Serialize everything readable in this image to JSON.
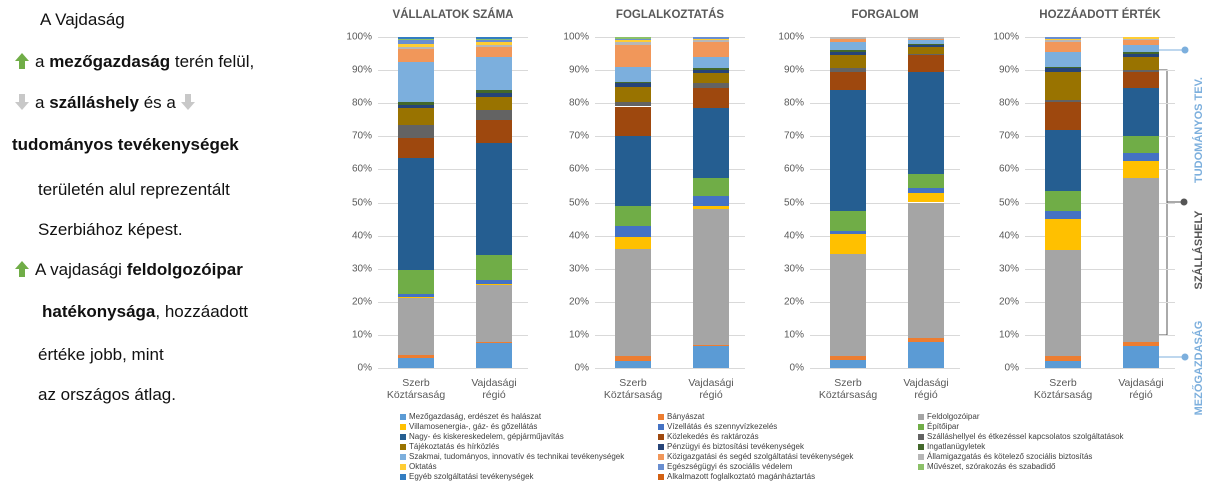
{
  "text_panel": {
    "lines": [
      [
        "A Vajdaság"
      ],
      [
        "a ",
        "mezőgazdaság",
        " terén felül,"
      ],
      [
        "a ",
        "szálláshely",
        " és a "
      ],
      [
        "tudományos tevékenységek"
      ],
      [
        "területén alul reprezentált"
      ],
      [
        "Szerbiához képest."
      ],
      [
        "A vajdasági ",
        "feldolgozóipar"
      ],
      [
        "hatékonysága",
        ", hozzáadott"
      ],
      [
        "értéke jobb, mint"
      ],
      [
        "az országos átlag."
      ]
    ]
  },
  "chart_data": [
    {
      "type": "bar",
      "stacked": true,
      "title": "VÁLLALATOK SZÁMA",
      "categories": [
        "Szerb Köztársaság",
        "Vajdasági régió"
      ],
      "ylim": [
        0,
        100
      ],
      "yticks": [
        {
          "value": 0,
          "label": "0%"
        },
        {
          "value": 10,
          "label": "10%"
        },
        {
          "value": 20,
          "label": "20%"
        },
        {
          "value": 30,
          "label": "30%"
        },
        {
          "value": 40,
          "label": "40%"
        },
        {
          "value": 50,
          "label": "50%"
        },
        {
          "value": 60,
          "label": "60%"
        },
        {
          "value": 70,
          "label": "70%"
        },
        {
          "value": 80,
          "label": "80%"
        },
        {
          "value": 90,
          "label": "90%"
        },
        {
          "value": 100,
          "label": "100%"
        }
      ],
      "grid": true,
      "series": [
        {
          "values": [
            3,
            7.5
          ]
        },
        {
          "values": [
            1,
            0.5
          ]
        },
        {
          "values": [
            17,
            17
          ]
        },
        {
          "values": [
            0.5,
            0.5
          ]
        },
        {
          "values": [
            1,
            1
          ]
        },
        {
          "values": [
            7,
            7.5
          ]
        },
        {
          "values": [
            34,
            34
          ]
        },
        {
          "values": [
            6,
            7
          ]
        },
        {
          "values": [
            4,
            3
          ]
        },
        {
          "values": [
            5,
            4
          ]
        },
        {
          "values": [
            1,
            1
          ]
        },
        {
          "values": [
            1,
            1
          ]
        },
        {
          "values": [
            12,
            10
          ]
        },
        {
          "values": [
            4,
            3
          ]
        },
        {
          "values": [
            0.5,
            0.5
          ]
        },
        {
          "values": [
            1,
            1
          ]
        },
        {
          "values": [
            1,
            0.5
          ]
        },
        {
          "values": [
            0.5,
            0.5
          ]
        },
        {
          "values": [
            0.5,
            0.5
          ]
        },
        {
          "values": [
            0,
            0
          ]
        }
      ]
    },
    {
      "type": "bar",
      "stacked": true,
      "title": "FOGLALKOZTATÁS",
      "categories": [
        "Szerb Köztársaság",
        "Vajdasági régió"
      ],
      "ylim": [
        0,
        100
      ],
      "yticks": [
        {
          "value": 0,
          "label": "0%"
        },
        {
          "value": 10,
          "label": "10%"
        },
        {
          "value": 20,
          "label": "20%"
        },
        {
          "value": 30,
          "label": "30%"
        },
        {
          "value": 40,
          "label": "40%"
        },
        {
          "value": 50,
          "label": "50%"
        },
        {
          "value": 60,
          "label": "60%"
        },
        {
          "value": 70,
          "label": "70%"
        },
        {
          "value": 80,
          "label": "80%"
        },
        {
          "value": 90,
          "label": "90%"
        },
        {
          "value": 100,
          "label": "100%"
        }
      ],
      "grid": true,
      "series": [
        {
          "values": [
            2,
            6.5
          ]
        },
        {
          "values": [
            1.5,
            0.5
          ]
        },
        {
          "values": [
            32.5,
            41
          ]
        },
        {
          "values": [
            3.5,
            1
          ]
        },
        {
          "values": [
            3.5,
            3
          ]
        },
        {
          "values": [
            6,
            5.5
          ]
        },
        {
          "values": [
            21,
            21
          ]
        },
        {
          "values": [
            9,
            6
          ]
        },
        {
          "values": [
            1.5,
            1.5
          ]
        },
        {
          "values": [
            4.5,
            3
          ]
        },
        {
          "values": [
            1,
            1
          ]
        },
        {
          "values": [
            0.5,
            0.5
          ]
        },
        {
          "values": [
            4.5,
            3.5
          ]
        },
        {
          "values": [
            6.5,
            4.5
          ]
        },
        {
          "values": [
            1,
            0.5
          ]
        },
        {
          "values": [
            0.5,
            0.5
          ]
        },
        {
          "values": [
            0.5,
            0.5
          ]
        },
        {
          "values": [
            0.5,
            0
          ]
        },
        {
          "values": [
            0,
            0
          ]
        },
        {
          "values": [
            0,
            0
          ]
        }
      ]
    },
    {
      "type": "bar",
      "stacked": true,
      "title": "FORGALOM",
      "categories": [
        "Szerb Köztársaság",
        "Vajdasági régió"
      ],
      "ylim": [
        0,
        100
      ],
      "yticks": [
        {
          "value": 0,
          "label": "0%"
        },
        {
          "value": 10,
          "label": "10%"
        },
        {
          "value": 20,
          "label": "20%"
        },
        {
          "value": 30,
          "label": "30%"
        },
        {
          "value": 40,
          "label": "40%"
        },
        {
          "value": 50,
          "label": "50%"
        },
        {
          "value": 60,
          "label": "60%"
        },
        {
          "value": 70,
          "label": "70%"
        },
        {
          "value": 80,
          "label": "80%"
        },
        {
          "value": 90,
          "label": "90%"
        },
        {
          "value": 100,
          "label": "100%"
        }
      ],
      "grid": true,
      "series": [
        {
          "values": [
            2.5,
            8
          ]
        },
        {
          "values": [
            1,
            1
          ]
        },
        {
          "values": [
            31,
            41
          ]
        },
        {
          "values": [
            6,
            3
          ]
        },
        {
          "values": [
            1,
            1.5
          ]
        },
        {
          "values": [
            6,
            4
          ]
        },
        {
          "values": [
            36.5,
            31
          ]
        },
        {
          "values": [
            5.5,
            5
          ]
        },
        {
          "values": [
            1,
            0.5
          ]
        },
        {
          "values": [
            4,
            2
          ]
        },
        {
          "values": [
            1,
            0.5
          ]
        },
        {
          "values": [
            0.5,
            0.5
          ]
        },
        {
          "values": [
            2.5,
            1
          ]
        },
        {
          "values": [
            1,
            0.5
          ]
        },
        {
          "values": [
            0.5,
            0.5
          ]
        },
        {
          "values": [
            0,
            0
          ]
        },
        {
          "values": [
            0,
            0
          ]
        },
        {
          "values": [
            0,
            0
          ]
        },
        {
          "values": [
            0,
            0
          ]
        },
        {
          "values": [
            0,
            0
          ]
        }
      ]
    },
    {
      "type": "bar",
      "stacked": true,
      "title": "HOZZÁADOTT ÉRTÉK",
      "categories": [
        "Szerb Köztársaság",
        "Vajdasági régió"
      ],
      "ylim": [
        0,
        100
      ],
      "yticks": [
        {
          "value": 0,
          "label": "0%"
        },
        {
          "value": 10,
          "label": "10%"
        },
        {
          "value": 20,
          "label": "20%"
        },
        {
          "value": 30,
          "label": "30%"
        },
        {
          "value": 40,
          "label": "40%"
        },
        {
          "value": 50,
          "label": "50%"
        },
        {
          "value": 60,
          "label": "60%"
        },
        {
          "value": 70,
          "label": "70%"
        },
        {
          "value": 80,
          "label": "80%"
        },
        {
          "value": 90,
          "label": "90%"
        },
        {
          "value": 100,
          "label": "100%"
        }
      ],
      "grid": true,
      "series": [
        {
          "values": [
            2,
            6.5
          ]
        },
        {
          "values": [
            1.5,
            1.5
          ]
        },
        {
          "values": [
            32,
            49.5
          ]
        },
        {
          "values": [
            9.5,
            5
          ]
        },
        {
          "values": [
            2.5,
            2.5
          ]
        },
        {
          "values": [
            6,
            5
          ]
        },
        {
          "values": [
            18.5,
            14.5
          ]
        },
        {
          "values": [
            8.5,
            5
          ]
        },
        {
          "values": [
            0.5,
            0.5
          ]
        },
        {
          "values": [
            8.5,
            4
          ]
        },
        {
          "values": [
            1,
            1
          ]
        },
        {
          "values": [
            0.5,
            0.5
          ]
        },
        {
          "values": [
            4.5,
            2
          ]
        },
        {
          "values": [
            3,
            1.5
          ]
        },
        {
          "values": [
            0.5,
            0.5
          ]
        },
        {
          "values": [
            0.5,
            0.5
          ]
        },
        {
          "values": [
            0.5,
            0
          ]
        },
        {
          "values": [
            0,
            0
          ]
        },
        {
          "values": [
            0,
            0
          ]
        },
        {
          "values": [
            0,
            0
          ]
        }
      ]
    }
  ],
  "legend": {
    "entries": [
      {
        "name": "Mezőgazdaság, erdészet és halászat",
        "color": "#5b9bd5"
      },
      {
        "name": "Bányászat",
        "color": "#ed7d31"
      },
      {
        "name": "Feldolgozóipar",
        "color": "#a5a5a5"
      },
      {
        "name": "Villamosenergia-, gáz- és gőzellátás",
        "color": "#ffc000"
      },
      {
        "name": "Vízellátás és szennyvízkezelés",
        "color": "#4472c4"
      },
      {
        "name": "Építőipar",
        "color": "#70ad47"
      },
      {
        "name": "Nagy- és kiskereskedelem, gépjárműjavítás",
        "color": "#255e91"
      },
      {
        "name": "Közlekedés és raktározás",
        "color": "#9e480e"
      },
      {
        "name": "Szálláshellyel és étkezéssel kapcsolatos szolgáltatások",
        "color": "#636363"
      },
      {
        "name": "Tájékoztatás és hírközlés",
        "color": "#997300"
      },
      {
        "name": "Pénzügyi és biztosítási tevékenységek",
        "color": "#264478"
      },
      {
        "name": "Ingatlanügyletek",
        "color": "#43682b"
      },
      {
        "name": "Szakmai, tudományos, innovatív és technikai tevékenységek",
        "color": "#7cafdd"
      },
      {
        "name": "Közigazgatási és segéd szolgáltatási tevékenységek",
        "color": "#f1975a"
      },
      {
        "name": "Államigazgatás és kötelező szociális biztosítás",
        "color": "#b7b7b7"
      },
      {
        "name": "Oktatás",
        "color": "#ffcd33"
      },
      {
        "name": "Egészségügyi és szociális védelem",
        "color": "#698ed0"
      },
      {
        "name": "Művészet, szórakozás és szabadidő",
        "color": "#8cc168"
      },
      {
        "name": "Egyéb szolgáltatási tevékenységek",
        "color": "#327dc2"
      },
      {
        "name": "Alkalmazott foglalkoztató magánháztartás",
        "color": "#d26012"
      }
    ]
  },
  "annotations": [
    "TUDOMÁNYOS TEV.",
    "SZÁLLÁSHELY",
    "MEZŐGAZDASÁG"
  ]
}
